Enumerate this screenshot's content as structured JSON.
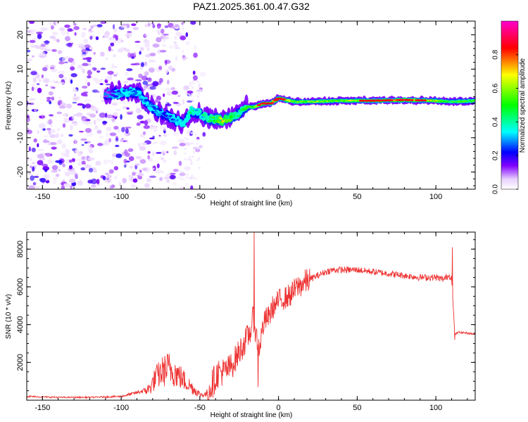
{
  "figure_title": "PAZ1.2025.361.00.47.G32",
  "chart_data": [
    {
      "type": "heatmap",
      "title": "PAZ1.2025.361.00.47.G32",
      "xlabel": "Height of straight line (km)",
      "ylabel": "Frequency (Hz)",
      "xlim": [
        -160,
        125
      ],
      "ylim": [
        -25,
        24
      ],
      "xticks": [
        -150,
        -100,
        -50,
        0,
        50,
        100
      ],
      "yticks": [
        -20,
        -10,
        0,
        10,
        20
      ],
      "colorbar": {
        "label": "Normalized spectral amplitude",
        "range": [
          0,
          1
        ],
        "ticks": [
          0.0,
          0.2,
          0.4,
          0.6,
          0.8
        ],
        "colormap": [
          "#e0c8f5",
          "#a040f0",
          "#6a00ff",
          "#0000ff",
          "#00ffff",
          "#00ff00",
          "#ffff00",
          "#ff0000",
          "#ff00cc"
        ]
      },
      "ridge": {
        "x": [
          -110,
          -100,
          -90,
          -80,
          -70,
          -60,
          -55,
          -50,
          -45,
          -40,
          -35,
          -30,
          -25,
          -20,
          -15,
          -10,
          -5,
          0,
          5,
          10,
          20,
          40,
          60,
          80,
          100,
          110,
          125
        ],
        "freq": [
          2.5,
          3,
          3.5,
          -1.5,
          -4,
          -6,
          -2,
          -3,
          -4.5,
          -4.5,
          -5,
          -4,
          -3,
          -1,
          -1,
          0,
          0,
          1.5,
          1,
          0.5,
          0.5,
          0.8,
          0.8,
          1,
          0.8,
          0.5,
          0.8
        ],
        "amplitude": [
          0.1,
          0.3,
          0.3,
          0.3,
          0.25,
          0.35,
          0.4,
          0.35,
          0.45,
          0.5,
          0.7,
          0.55,
          0.4,
          0.5,
          0.55,
          0.8,
          0.8,
          0.75,
          0.7,
          0.55,
          0.55,
          0.6,
          0.75,
          0.8,
          0.65,
          0.5,
          0.5
        ]
      },
      "noise_region_x": [
        -160,
        -75
      ]
    },
    {
      "type": "line",
      "xlabel": "Height of straight line (km)",
      "ylabel": "SNR (10 * v/v)",
      "xlim": [
        -160,
        125
      ],
      "ylim": [
        0,
        8900
      ],
      "xticks": [
        -150,
        -100,
        -50,
        0,
        50,
        100
      ],
      "yticks": [
        2000,
        4000,
        6000,
        8000
      ],
      "line_color": "#ee3333",
      "series": [
        {
          "name": "SNR",
          "x": [
            -160,
            -140,
            -120,
            -100,
            -90,
            -82,
            -78,
            -74,
            -70,
            -66,
            -62,
            -58,
            -54,
            -50,
            -46,
            -42,
            -38,
            -34,
            -30,
            -26,
            -22,
            -18,
            -16,
            -14,
            -12,
            -10,
            -8,
            -6,
            -4,
            -2,
            0,
            4,
            8,
            12,
            16,
            20,
            25,
            30,
            35,
            40,
            50,
            60,
            70,
            80,
            90,
            100,
            105,
            108,
            110,
            112,
            115,
            120,
            125
          ],
          "y": [
            200,
            150,
            150,
            200,
            400,
            600,
            1200,
            1500,
            1700,
            1500,
            1200,
            900,
            600,
            300,
            300,
            900,
            1500,
            1500,
            1800,
            2400,
            3000,
            3600,
            4400,
            3300,
            2800,
            3900,
            4300,
            4400,
            4900,
            5000,
            5300,
            5400,
            5600,
            6000,
            6200,
            6400,
            6600,
            6800,
            6900,
            6900,
            6900,
            6800,
            6700,
            6600,
            6500,
            6500,
            6400,
            6600,
            6500,
            3500,
            3600,
            3550,
            3500
          ]
        }
      ],
      "spikes": [
        {
          "x": -15.5,
          "y": 8900
        },
        {
          "x": -13,
          "y": 700
        },
        {
          "x": 110.5,
          "y": 8100
        },
        {
          "x": 112,
          "y": 3200
        }
      ]
    }
  ]
}
